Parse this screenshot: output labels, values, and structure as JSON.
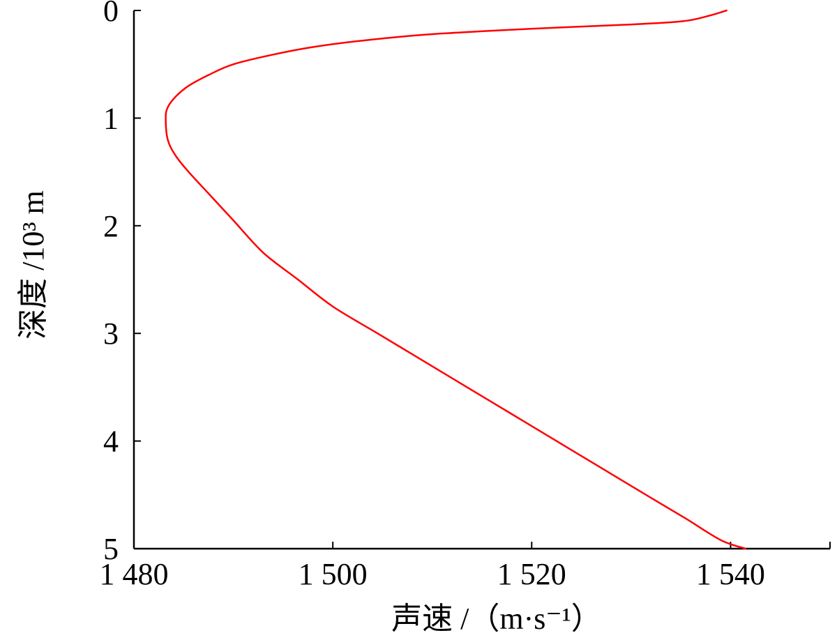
{
  "chart_data": {
    "type": "line",
    "xlabel": "声速 /（m·s⁻¹）",
    "ylabel": "深度 /10³ m",
    "xlim": [
      1480,
      1550
    ],
    "ylim": [
      0,
      5
    ],
    "y_inverted": true,
    "grid": false,
    "x_ticks": [
      {
        "value": 1480,
        "label": "1 480"
      },
      {
        "value": 1500,
        "label": "1 500"
      },
      {
        "value": 1520,
        "label": "1 520"
      },
      {
        "value": 1540,
        "label": "1 540"
      }
    ],
    "y_ticks": [
      {
        "value": 0,
        "label": "0"
      },
      {
        "value": 1,
        "label": "1"
      },
      {
        "value": 2,
        "label": "2"
      },
      {
        "value": 3,
        "label": "3"
      },
      {
        "value": 4,
        "label": "4"
      },
      {
        "value": 5,
        "label": "5"
      }
    ],
    "series": [
      {
        "color": "#ff0000",
        "x": [
          1539.6,
          1537.8,
          1535.2,
          1530.0,
          1520.0,
          1510.0,
          1503.0,
          1498.0,
          1494.0,
          1490.0,
          1487.5,
          1485.5,
          1484.2,
          1483.4,
          1483.2,
          1483.4,
          1484.2,
          1485.5,
          1487.5,
          1490.0,
          1493.0,
          1496.5,
          1500.0,
          1504.5,
          1509.0,
          1513.5,
          1518.0,
          1522.5,
          1527.0,
          1531.5,
          1535.5,
          1539.0,
          1541.5
        ],
        "y": [
          0.0,
          0.05,
          0.1,
          0.13,
          0.17,
          0.22,
          0.28,
          0.34,
          0.41,
          0.5,
          0.6,
          0.7,
          0.8,
          0.9,
          1.0,
          1.2,
          1.35,
          1.5,
          1.7,
          1.95,
          2.25,
          2.5,
          2.75,
          3.0,
          3.25,
          3.5,
          3.75,
          4.0,
          4.25,
          4.5,
          4.72,
          4.92,
          5.0
        ]
      }
    ]
  }
}
